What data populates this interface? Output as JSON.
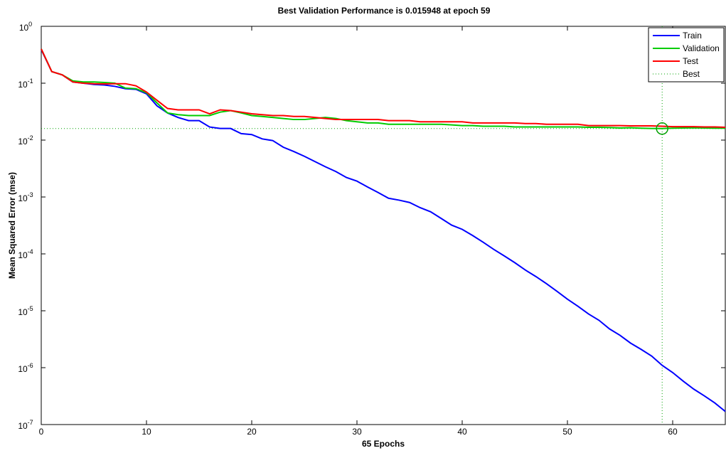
{
  "chart_data": {
    "type": "line",
    "title": "Best Validation Performance is 0.015948 at epoch 59",
    "xlabel": "65 Epochs",
    "ylabel": "Mean Squared Error  (mse)",
    "log_y": true,
    "legend": "upper right",
    "x": [
      0,
      1,
      2,
      3,
      4,
      5,
      6,
      7,
      8,
      9,
      10,
      11,
      12,
      13,
      14,
      15,
      16,
      17,
      18,
      19,
      20,
      21,
      22,
      23,
      24,
      25,
      26,
      27,
      28,
      29,
      30,
      31,
      32,
      33,
      34,
      35,
      36,
      37,
      38,
      39,
      40,
      41,
      42,
      43,
      44,
      45,
      46,
      47,
      48,
      49,
      50,
      51,
      52,
      53,
      54,
      55,
      56,
      57,
      58,
      59,
      60,
      61,
      62,
      63,
      64,
      65
    ],
    "series": [
      {
        "name": "Train",
        "color": "#0000ff",
        "values": [
          0.39,
          0.16,
          0.14,
          0.105,
          0.1,
          0.095,
          0.093,
          0.088,
          0.08,
          0.078,
          0.065,
          0.04,
          0.03,
          0.025,
          0.022,
          0.022,
          0.017,
          0.016,
          0.016,
          0.013,
          0.0125,
          0.0105,
          0.0098,
          0.0075,
          0.0063,
          0.0052,
          0.0042,
          0.0034,
          0.0028,
          0.0022,
          0.0019,
          0.0015,
          0.0012,
          0.00095,
          0.00088,
          0.0008,
          0.00065,
          0.00055,
          0.00042,
          0.00032,
          0.00027,
          0.00021,
          0.00016,
          0.00012,
          9.2e-05,
          7e-05,
          5.2e-05,
          4e-05,
          3e-05,
          2.2e-05,
          1.6e-05,
          1.2e-05,
          8.8e-06,
          6.8e-06,
          4.8e-06,
          3.7e-06,
          2.7e-06,
          2.1e-06,
          1.6e-06,
          1.1e-06,
          8.2e-07,
          5.8e-07,
          4.2e-07,
          3.2e-07,
          2.4e-07,
          1.7e-07
        ]
      },
      {
        "name": "Validation",
        "color": "#00cc00",
        "values": [
          0.4,
          0.16,
          0.14,
          0.11,
          0.105,
          0.105,
          0.103,
          0.1,
          0.082,
          0.08,
          0.068,
          0.045,
          0.03,
          0.028,
          0.027,
          0.027,
          0.027,
          0.031,
          0.033,
          0.03,
          0.027,
          0.026,
          0.025,
          0.024,
          0.023,
          0.023,
          0.024,
          0.025,
          0.024,
          0.022,
          0.021,
          0.02,
          0.02,
          0.019,
          0.019,
          0.019,
          0.019,
          0.019,
          0.019,
          0.0185,
          0.018,
          0.018,
          0.0175,
          0.0175,
          0.0175,
          0.017,
          0.017,
          0.017,
          0.017,
          0.017,
          0.017,
          0.017,
          0.0168,
          0.0168,
          0.0166,
          0.0163,
          0.0165,
          0.0162,
          0.016,
          0.015948,
          0.0162,
          0.0163,
          0.0164,
          0.0163,
          0.0162,
          0.0162
        ]
      },
      {
        "name": "Test",
        "color": "#ff0000",
        "values": [
          0.4,
          0.16,
          0.14,
          0.105,
          0.1,
          0.098,
          0.097,
          0.098,
          0.098,
          0.09,
          0.07,
          0.05,
          0.036,
          0.034,
          0.034,
          0.034,
          0.029,
          0.034,
          0.033,
          0.031,
          0.029,
          0.028,
          0.027,
          0.027,
          0.026,
          0.026,
          0.025,
          0.024,
          0.023,
          0.023,
          0.023,
          0.023,
          0.023,
          0.022,
          0.022,
          0.022,
          0.021,
          0.021,
          0.021,
          0.021,
          0.021,
          0.02,
          0.02,
          0.02,
          0.02,
          0.02,
          0.0195,
          0.0195,
          0.019,
          0.019,
          0.019,
          0.019,
          0.018,
          0.018,
          0.018,
          0.018,
          0.0178,
          0.0178,
          0.0178,
          0.0175,
          0.0172,
          0.0172,
          0.0172,
          0.017,
          0.017,
          0.0168
        ]
      }
    ],
    "best": {
      "name": "Best",
      "color": "#00a000",
      "x": 59,
      "value": 0.015948
    },
    "xlim": [
      0,
      65
    ],
    "xticks": [
      0,
      10,
      20,
      30,
      40,
      50,
      60
    ],
    "ylim": [
      1e-07,
      1
    ],
    "yticks": [
      {
        "value": 1e-07,
        "label": "10^-7"
      },
      {
        "value": 1e-06,
        "label": "10^-6"
      },
      {
        "value": 1e-05,
        "label": "10^-5"
      },
      {
        "value": 0.0001,
        "label": "10^-4"
      },
      {
        "value": 0.001,
        "label": "10^-3"
      },
      {
        "value": 0.01,
        "label": "10^-2"
      },
      {
        "value": 0.1,
        "label": "10^-1"
      },
      {
        "value": 1,
        "label": "10^0"
      }
    ]
  }
}
